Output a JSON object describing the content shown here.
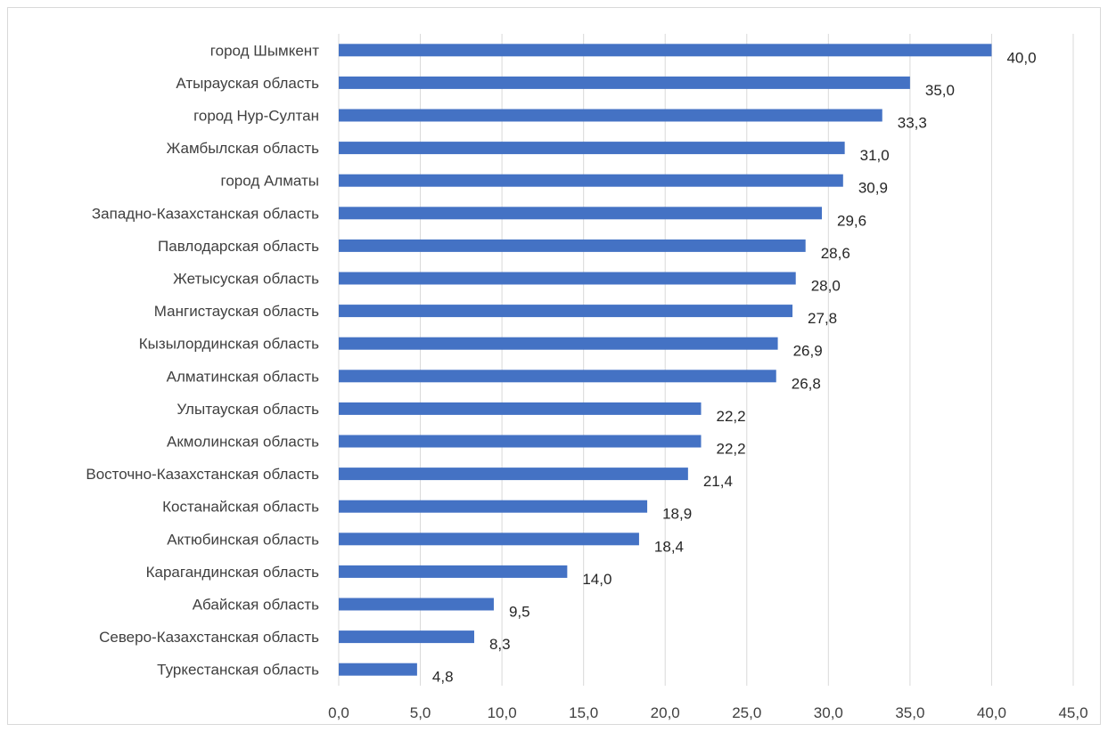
{
  "chart_data": {
    "type": "bar",
    "orientation": "horizontal",
    "title": "",
    "xlabel": "",
    "ylabel": "",
    "categories": [
      "город Шымкент",
      "Атырауская область",
      "город Нур-Султан",
      "Жамбылская область",
      "город Алматы",
      "Западно-Казахстанская область",
      "Павлодарская область",
      "Жетысуская область",
      "Мангистауская область",
      "Кызылординская область",
      "Алматинская область",
      "Улытауская область",
      "Акмолинская область",
      "Восточно-Казахстанская область",
      "Костанайская область",
      "Актюбинская область",
      "Карагандинская область",
      "Абайская область",
      "Северо-Казахстанская область",
      "Туркестанская область"
    ],
    "values": [
      40.0,
      35.0,
      33.3,
      31.0,
      30.9,
      29.6,
      28.6,
      28.0,
      27.8,
      26.9,
      26.8,
      22.2,
      22.2,
      21.4,
      18.9,
      18.4,
      14.0,
      9.5,
      8.3,
      4.8
    ],
    "value_labels": [
      "40,0",
      "35,0",
      "33,3",
      "31,0",
      "30,9",
      "29,6",
      "28,6",
      "28,0",
      "27,8",
      "26,9",
      "26,8",
      "22,2",
      "22,2",
      "21,4",
      "18,9",
      "18,4",
      "14,0",
      "9,5",
      "8,3",
      "4,8"
    ],
    "xlim": [
      0,
      45
    ],
    "x_ticks": [
      0,
      5,
      10,
      15,
      20,
      25,
      30,
      35,
      40,
      45
    ],
    "x_tick_labels": [
      "0,0",
      "5,0",
      "10,0",
      "15,0",
      "20,0",
      "25,0",
      "30,0",
      "35,0",
      "40,0",
      "45,0"
    ],
    "grid": "vertical",
    "legend": "none",
    "colors": {
      "bar": "#4472c4",
      "grid": "#d9d9d9",
      "text": "#404040",
      "border": "#d9d9d9"
    }
  }
}
